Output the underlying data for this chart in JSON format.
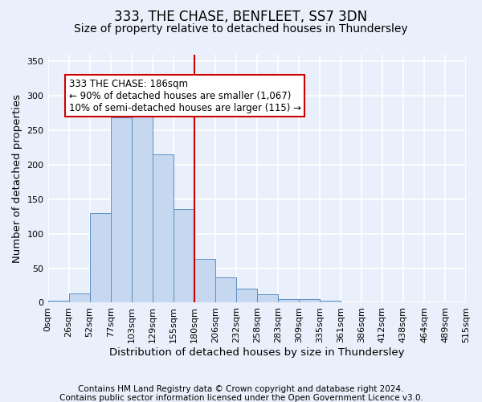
{
  "title": "333, THE CHASE, BENFLEET, SS7 3DN",
  "subtitle": "Size of property relative to detached houses in Thundersley",
  "xlabel": "Distribution of detached houses by size in Thundersley",
  "ylabel": "Number of detached properties",
  "bin_labels": [
    "0sqm",
    "26sqm",
    "52sqm",
    "77sqm",
    "103sqm",
    "129sqm",
    "155sqm",
    "180sqm",
    "206sqm",
    "232sqm",
    "258sqm",
    "283sqm",
    "309sqm",
    "335sqm",
    "361sqm",
    "386sqm",
    "412sqm",
    "438sqm",
    "464sqm",
    "489sqm",
    "515sqm"
  ],
  "bar_values": [
    3,
    13,
    130,
    268,
    285,
    215,
    136,
    63,
    37,
    20,
    12,
    5,
    5,
    3,
    1,
    0,
    0,
    0,
    0,
    0
  ],
  "bar_color": "#c5d8f0",
  "bar_edge_color": "#5b8fc3",
  "vline_label_index": 7,
  "vline_color": "#cc0000",
  "annotation_text": "333 THE CHASE: 186sqm\n← 90% of detached houses are smaller (1,067)\n10% of semi-detached houses are larger (115) →",
  "annotation_box_color": "#ffffff",
  "annotation_box_edge": "#cc0000",
  "ylim": [
    0,
    360
  ],
  "yticks": [
    0,
    50,
    100,
    150,
    200,
    250,
    300,
    350
  ],
  "footnote1": "Contains HM Land Registry data © Crown copyright and database right 2024.",
  "footnote2": "Contains public sector information licensed under the Open Government Licence v3.0.",
  "bg_color": "#eaf0fb",
  "plot_bg_color": "#eaf0fb",
  "grid_color": "#ffffff",
  "title_fontsize": 12,
  "subtitle_fontsize": 10,
  "axis_label_fontsize": 9.5,
  "tick_fontsize": 8,
  "footnote_fontsize": 7.5,
  "annotation_fontsize": 8.5
}
